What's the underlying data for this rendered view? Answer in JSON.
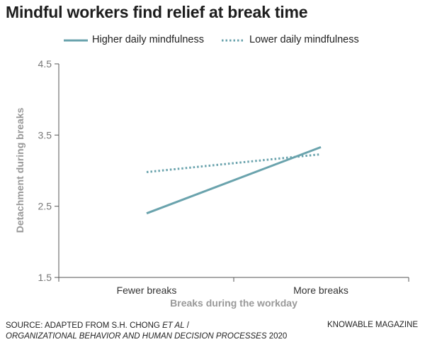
{
  "chart_data": {
    "type": "line",
    "title": "Mindful workers find relief at break time",
    "xlabel": "Breaks during the workday",
    "ylabel": "Detachment during breaks",
    "categories": [
      "Fewer breaks",
      "More breaks"
    ],
    "ylim": [
      1.5,
      4.5
    ],
    "yticks": [
      "1.5",
      "2.5",
      "3.5",
      "4.5"
    ],
    "grid": false,
    "legend": "top",
    "series": [
      {
        "name": "Higher daily mindfulness",
        "values": [
          2.4,
          3.33
        ],
        "style": "solid",
        "color": "#6aa3ad"
      },
      {
        "name": "Lower daily mindfulness",
        "values": [
          2.98,
          3.23
        ],
        "style": "dotted",
        "color": "#6aa3ad"
      }
    ]
  },
  "footer": {
    "source_prefix": "SOURCE: ADAPTED FROM S.H. CHONG ",
    "source_etal": "ET AL",
    "source_slash": " /",
    "source_journal": "ORGANIZATIONAL BEHAVIOR AND HUMAN DECISION PROCESSES",
    "source_year": " 2020",
    "credit": "KNOWABLE MAGAZINE"
  }
}
